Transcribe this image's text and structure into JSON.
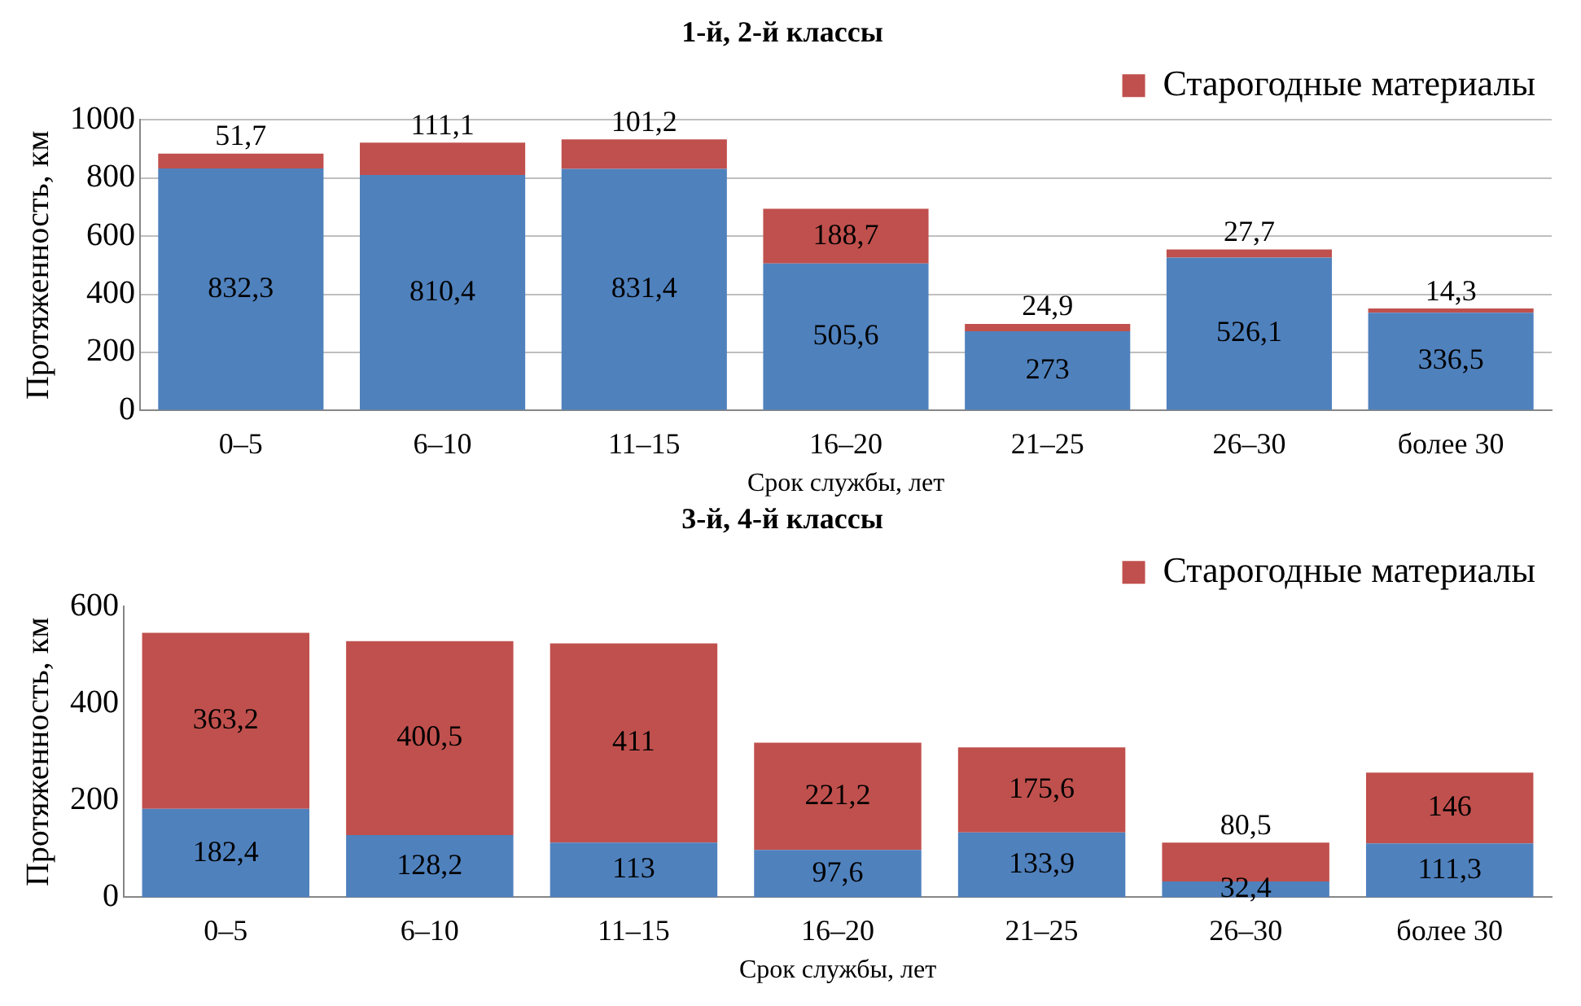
{
  "chart_data": [
    {
      "type": "bar",
      "title": "1-й, 2-й классы",
      "xlabel": "Срок службы, лет",
      "ylabel": "Протяженность, км",
      "categories": [
        "0–5",
        "6–10",
        "11–15",
        "16–20",
        "21–25",
        "26–30",
        "более 30"
      ],
      "stacked": true,
      "ylim": [
        0,
        1000
      ],
      "yticks": [
        0,
        200,
        400,
        600,
        800,
        1000
      ],
      "grid": "y",
      "legend": "top right",
      "series": [
        {
          "color": "#4f81bd",
          "values": [
            832.3,
            810.4,
            831.4,
            505.6,
            273,
            526.1,
            336.5
          ],
          "value_labels": [
            "832,3",
            "810,4",
            "831,4",
            "505,6",
            "273",
            "526,1",
            "336,5"
          ]
        },
        {
          "name": "Старогодные материалы",
          "color": "#c0504d",
          "values": [
            51.7,
            111.1,
            101.2,
            188.7,
            24.9,
            27.7,
            14.3
          ],
          "value_labels": [
            "51,7",
            "111,1",
            "101,2",
            "188,7",
            "24,9",
            "27,7",
            "14,3"
          ]
        }
      ]
    },
    {
      "type": "bar",
      "title": "3-й, 4-й классы",
      "xlabel": "Срок службы, лет",
      "ylabel": "Протяженность, км",
      "categories": [
        "0–5",
        "6–10",
        "11–15",
        "16–20",
        "21–25",
        "26–30",
        "более 30"
      ],
      "stacked": true,
      "ylim": [
        0,
        600
      ],
      "yticks": [
        0,
        200,
        400,
        600
      ],
      "grid": false,
      "legend": "top right",
      "series": [
        {
          "color": "#4f81bd",
          "values": [
            182.4,
            128.2,
            113,
            97.6,
            133.9,
            32.4,
            111.3
          ],
          "value_labels": [
            "182,4",
            "128,2",
            "113",
            "97,6",
            "133,9",
            "32,4",
            "111,3"
          ]
        },
        {
          "name": "Старогодные материалы",
          "color": "#c0504d",
          "values": [
            363.2,
            400.5,
            411,
            221.2,
            175.6,
            80.5,
            146
          ],
          "value_labels": [
            "363,2",
            "400,5",
            "411",
            "221,2",
            "175,6",
            "80,5",
            "146"
          ]
        }
      ]
    }
  ]
}
